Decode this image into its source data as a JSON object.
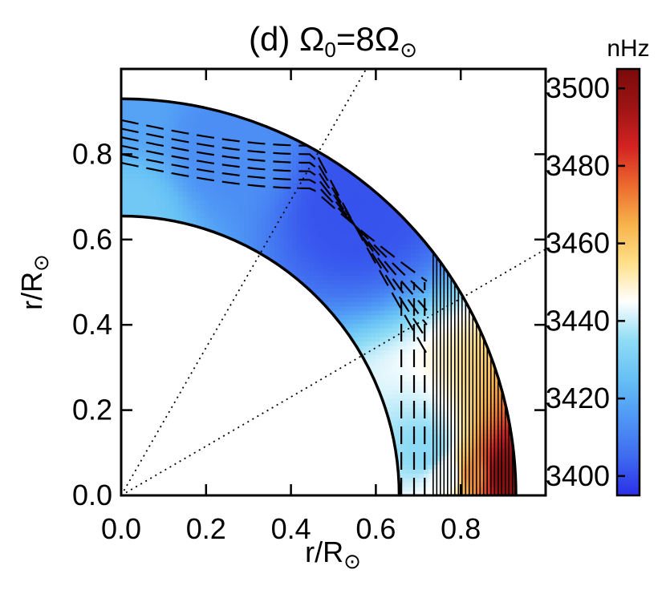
{
  "chart_data": {
    "type": "heatmap",
    "title": {
      "prefix": "(d) ",
      "omega": "Ω",
      "sub0": "0",
      "equals": "=8",
      "omega2": "Ω",
      "sun": "⊙"
    },
    "xlabel": {
      "main": "r/R",
      "sub": "⊙"
    },
    "ylabel": {
      "main": "r/R",
      "sub": "⊙"
    },
    "xlim": [
      0.0,
      1.0
    ],
    "ylim": [
      0.0,
      1.0
    ],
    "x_ticks": [
      "0.0",
      "0.2",
      "0.4",
      "0.6",
      "0.8"
    ],
    "y_ticks": [
      "0.0",
      "0.2",
      "0.4",
      "0.6",
      "0.8"
    ],
    "shell": {
      "inner_radius": 0.655,
      "outer_radius": 0.93
    },
    "tangent_cylinder_guides_deg": [
      30,
      60
    ],
    "colorbar": {
      "unit": "nHz",
      "min": 3395,
      "max": 3505,
      "ticks": [
        "3400",
        "3420",
        "3440",
        "3460",
        "3480",
        "3500"
      ],
      "colors": [
        "#2a2fe8",
        "#3f6bf0",
        "#4f97f5",
        "#66c0f5",
        "#8fdcf5",
        "#ffffff",
        "#ffe08a",
        "#f7b24a",
        "#ec6a2e",
        "#d32222",
        "#9e1414",
        "#7a0a0a"
      ]
    },
    "field_samples": [
      {
        "s": 0.0,
        "z": 0.66,
        "value": 3428
      },
      {
        "s": 0.0,
        "z": 0.92,
        "value": 3418
      },
      {
        "s": 0.25,
        "z": 0.82,
        "value": 3413
      },
      {
        "s": 0.55,
        "z": 0.68,
        "value": 3401
      },
      {
        "s": 0.72,
        "z": 0.1,
        "value": 3434
      },
      {
        "s": 0.77,
        "z": 0.05,
        "value": 3444
      },
      {
        "s": 0.83,
        "z": 0.05,
        "value": 3470
      },
      {
        "s": 0.9,
        "z": 0.05,
        "value": 3500
      }
    ]
  }
}
